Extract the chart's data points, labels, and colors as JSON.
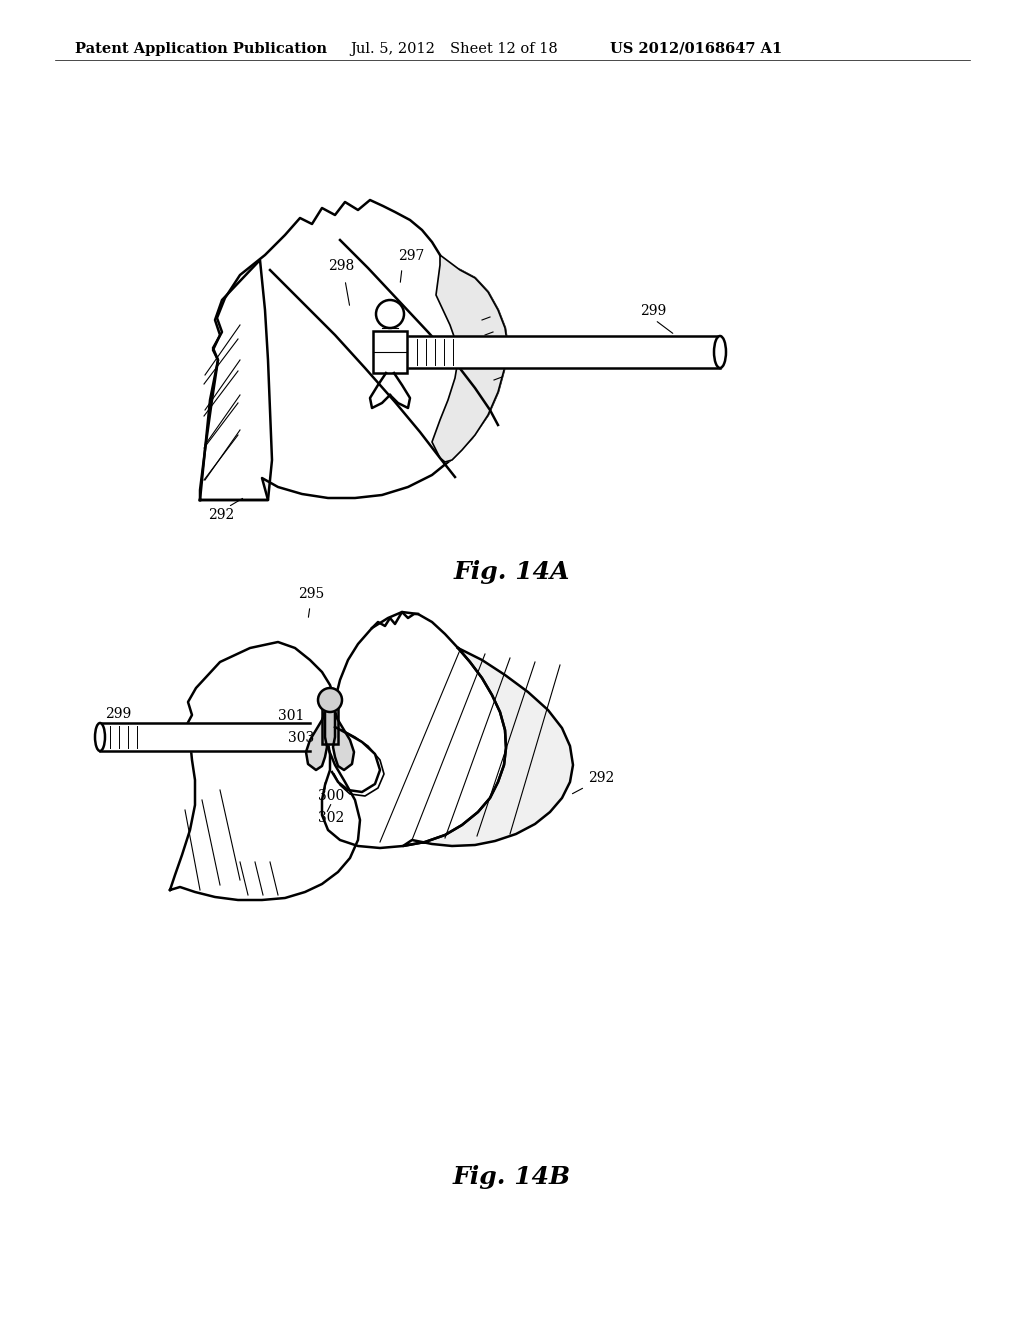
{
  "background_color": "#ffffff",
  "header_text": "Patent Application Publication",
  "header_date": "Jul. 5, 2012",
  "header_sheet": "Sheet 12 of 18",
  "header_patent": "US 2012/0168647 A1",
  "fig_14a_label": "Fig. 14A",
  "fig_14b_label": "Fig. 14B",
  "text_color": "#000000",
  "line_color": "#000000",
  "font_size_header": 10.5,
  "font_size_labels": 10,
  "font_size_fig": 18
}
